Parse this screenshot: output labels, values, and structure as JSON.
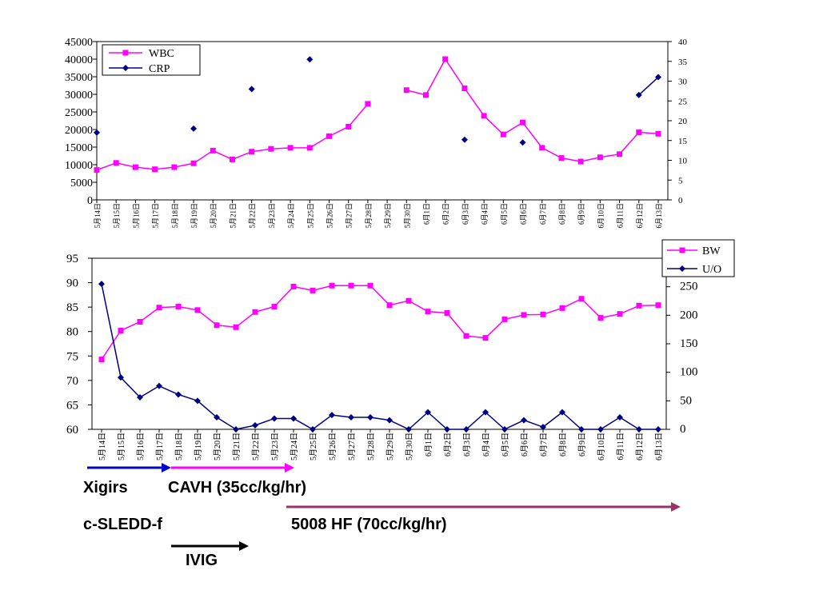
{
  "dates": [
    "5月14日",
    "5月15日",
    "5月16日",
    "5月17日",
    "5月18日",
    "5月19日",
    "5月20日",
    "5月21日",
    "5月22日",
    "5月23日",
    "5月24日",
    "5月25日",
    "5月26日",
    "5月27日",
    "5月28日",
    "5月29日",
    "5月30日",
    "6月1日",
    "6月2日",
    "6月3日",
    "6月4日",
    "6月5日",
    "6月6日",
    "6月7日",
    "6月8日",
    "6月9日",
    "6月10日",
    "6月11日",
    "6月12日",
    "6月13日"
  ],
  "colors": {
    "magenta": "#ff00ff",
    "navy": "#000080",
    "blue": "#0000cc",
    "maroon": "#993366",
    "black": "#000000"
  },
  "chart_data": [
    {
      "type": "line",
      "categories_ref": "dates",
      "y_left": {
        "ticks": [
          "0",
          "5000",
          "10000",
          "15000",
          "20000",
          "25000",
          "30000",
          "35000",
          "40000",
          "45000"
        ],
        "range": [
          0,
          45000
        ]
      },
      "y_right": {
        "ticks": [
          "0",
          "5",
          "10",
          "15",
          "20",
          "25",
          "30",
          "35",
          "40"
        ],
        "range": [
          0,
          40
        ]
      },
      "legend": {
        "position": "top-left"
      },
      "series": [
        {
          "name": "WBC",
          "axis": "left",
          "color": "#ff00ff",
          "marker": "square",
          "values": [
            8500,
            10500,
            9300,
            8700,
            9300,
            10400,
            14000,
            11500,
            13700,
            14500,
            14800,
            14800,
            18100,
            20800,
            27300,
            null,
            31200,
            29800,
            40000,
            31700,
            23900,
            18600,
            22000,
            14800,
            11900,
            10900,
            12100,
            13000,
            19200,
            18800
          ]
        },
        {
          "name": "CRP",
          "axis": "right",
          "color": "#000080",
          "marker": "diamond",
          "values": [
            17,
            null,
            null,
            null,
            null,
            18,
            null,
            null,
            28,
            null,
            null,
            35.5,
            null,
            null,
            null,
            null,
            null,
            null,
            null,
            15.2,
            null,
            null,
            14.5,
            null,
            null,
            null,
            null,
            null,
            26.5,
            31
          ]
        }
      ]
    },
    {
      "type": "line",
      "categories_ref": "dates",
      "y_left": {
        "ticks": [
          "60",
          "65",
          "70",
          "75",
          "80",
          "85",
          "90",
          "95"
        ],
        "range": [
          60,
          95
        ]
      },
      "y_right": {
        "ticks": [
          "0",
          "50",
          "100",
          "150",
          "200",
          "250"
        ],
        "range": [
          0,
          300
        ]
      },
      "legend": {
        "position": "top-right"
      },
      "series": [
        {
          "name": "BW",
          "axis": "left",
          "color": "#ff00ff",
          "marker": "square",
          "values": [
            74.3,
            80.2,
            82,
            84.9,
            85.1,
            84.4,
            81.3,
            80.9,
            84,
            85.1,
            89.2,
            88.4,
            89.4,
            89.4,
            89.4,
            85.4,
            86.3,
            84.1,
            83.8,
            79.1,
            78.7,
            82.5,
            83.4,
            83.5,
            84.8,
            86.7,
            82.8,
            83.6,
            85.3,
            85.4
          ]
        },
        {
          "name": "U/O",
          "axis": "right",
          "color": "#000080",
          "marker": "diamond",
          "values": [
            255,
            91,
            56,
            76,
            61,
            50,
            21,
            0,
            7,
            19,
            19,
            0,
            25,
            21,
            21,
            16,
            0,
            30,
            0,
            0,
            30,
            0,
            16,
            4,
            30,
            0,
            0,
            21,
            0,
            0
          ]
        }
      ]
    }
  ],
  "annotations": {
    "xigirs": "Xigirs",
    "cavh": "CAVH (35cc/kg/hr)",
    "sledd": "c-SLEDD-f",
    "hf": "5008 HF (70cc/kg/hr)",
    "ivig": "IVIG"
  }
}
